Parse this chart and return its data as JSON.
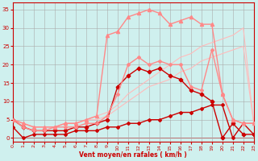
{
  "xlabel": "Vent moyen/en rafales ( km/h )",
  "background_color": "#cff0ee",
  "grid_color": "#aaaaaa",
  "x_ticks": [
    0,
    1,
    2,
    3,
    4,
    5,
    6,
    7,
    8,
    9,
    10,
    11,
    12,
    13,
    14,
    15,
    16,
    17,
    18,
    19,
    20,
    21,
    22,
    23
  ],
  "y_ticks": [
    0,
    5,
    10,
    15,
    20,
    25,
    30,
    35
  ],
  "xlim": [
    0,
    23
  ],
  "ylim": [
    -1,
    37
  ],
  "series": [
    {
      "x": [
        0,
        1,
        2,
        3,
        4,
        5,
        6,
        7,
        8,
        9,
        10,
        11,
        12,
        13,
        14,
        15,
        16,
        17,
        18,
        19,
        20,
        21,
        22,
        23
      ],
      "y": [
        3,
        0,
        1,
        1,
        1,
        1,
        2,
        2,
        2,
        3,
        3,
        4,
        4,
        5,
        5,
        6,
        7,
        7,
        8,
        9,
        9,
        0,
        4,
        1
      ],
      "color": "#cc0000",
      "marker": "D",
      "markersize": 2,
      "linewidth": 1.0
    },
    {
      "x": [
        0,
        1,
        2,
        3,
        4,
        5,
        6,
        7,
        8,
        9,
        10,
        11,
        12,
        13,
        14,
        15,
        16,
        17,
        18,
        19,
        20,
        21,
        22,
        23
      ],
      "y": [
        5,
        3,
        2,
        2,
        2,
        2,
        3,
        3,
        4,
        5,
        14,
        17,
        19,
        18,
        19,
        17,
        16,
        13,
        12,
        10,
        0,
        4,
        1,
        1
      ],
      "color": "#cc0000",
      "marker": "P",
      "markersize": 3,
      "linewidth": 1.0
    },
    {
      "x": [
        0,
        1,
        2,
        3,
        4,
        5,
        6,
        7,
        8,
        9,
        10,
        11,
        12,
        13,
        14,
        15,
        16,
        17,
        18,
        19,
        20,
        21,
        22,
        23
      ],
      "y": [
        5,
        3,
        2,
        2,
        3,
        3,
        3,
        4,
        4,
        6,
        12,
        20,
        22,
        20,
        21,
        20,
        20,
        14,
        13,
        24,
        12,
        5,
        4,
        4
      ],
      "color": "#ff8888",
      "marker": "D",
      "markersize": 2,
      "linewidth": 1.0
    },
    {
      "x": [
        0,
        1,
        2,
        3,
        4,
        5,
        6,
        7,
        8,
        9,
        10,
        11,
        12,
        13,
        14,
        15,
        16,
        17,
        18,
        19,
        20,
        21,
        22,
        23
      ],
      "y": [
        5,
        4,
        3,
        3,
        3,
        4,
        4,
        5,
        6,
        28,
        29,
        33,
        34,
        35,
        34,
        31,
        32,
        33,
        31,
        31,
        12,
        5,
        4,
        4
      ],
      "color": "#ff8888",
      "marker": "^",
      "markersize": 3,
      "linewidth": 1.0
    },
    {
      "x": [
        0,
        1,
        2,
        3,
        4,
        5,
        6,
        7,
        8,
        9,
        10,
        11,
        12,
        13,
        14,
        15,
        16,
        17,
        18,
        19,
        20,
        21,
        22,
        23
      ],
      "y": [
        5,
        4,
        3,
        3,
        3,
        4,
        4,
        5,
        5,
        6,
        8,
        10,
        12,
        14,
        15,
        16,
        18,
        19,
        21,
        22,
        23,
        24,
        25,
        4
      ],
      "color": "#ffbbbb",
      "marker": null,
      "linewidth": 0.8
    },
    {
      "x": [
        0,
        1,
        2,
        3,
        4,
        5,
        6,
        7,
        8,
        9,
        10,
        11,
        12,
        13,
        14,
        15,
        16,
        17,
        18,
        19,
        20,
        21,
        22,
        23
      ],
      "y": [
        5,
        4,
        3,
        3,
        3,
        4,
        4,
        5,
        6,
        7,
        9,
        12,
        14,
        16,
        18,
        20,
        22,
        23,
        25,
        26,
        27,
        28,
        30,
        4
      ],
      "color": "#ffbbbb",
      "marker": null,
      "linewidth": 0.8
    }
  ]
}
